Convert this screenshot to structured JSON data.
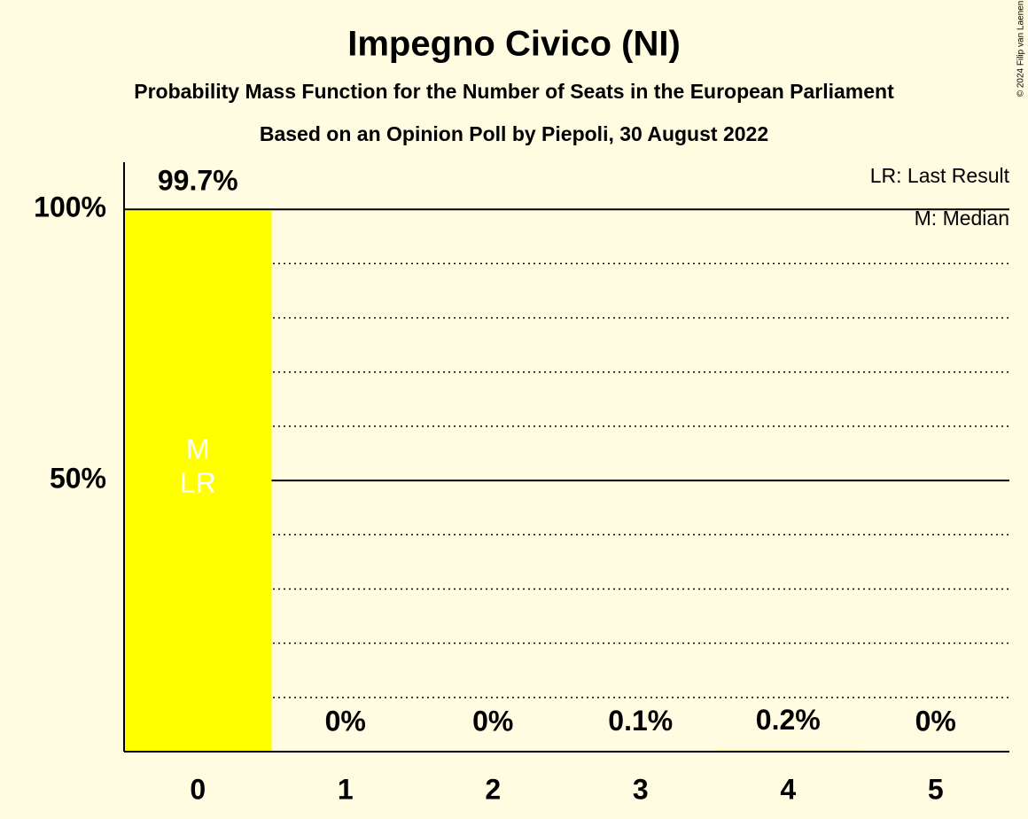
{
  "chart_data": {
    "type": "bar",
    "title": "Impegno Civico (NI)",
    "subtitles": [
      "Probability Mass Function for the Number of Seats in the European Parliament",
      "Based on an Opinion Poll by Piepoli, 30 August 2022"
    ],
    "categories": [
      "0",
      "1",
      "2",
      "3",
      "4",
      "5"
    ],
    "values": [
      99.7,
      0,
      0,
      0.1,
      0.2,
      0
    ],
    "value_labels": [
      "99.7%",
      "0%",
      "0%",
      "0.1%",
      "0.2%",
      "0%"
    ],
    "color": "#ffff00",
    "ylim": [
      0,
      108.7
    ],
    "yticks": [
      {
        "value": 50,
        "label": "50%"
      },
      {
        "value": 100,
        "label": "100%"
      }
    ],
    "minor_yticks": [
      10,
      20,
      30,
      40,
      60,
      70,
      80,
      90
    ],
    "annotations": [
      {
        "text": "M",
        "category": "0"
      },
      {
        "text": "LR",
        "category": "0"
      }
    ],
    "legend": [
      "LR: Last Result",
      "M: Median"
    ],
    "credit": "© 2024 Filip van Laenen"
  }
}
